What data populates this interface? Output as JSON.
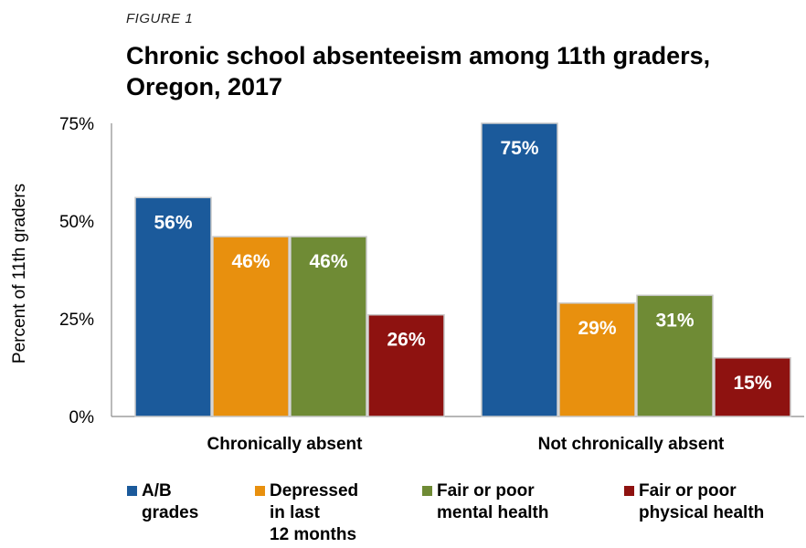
{
  "figure_label": "FIGURE 1",
  "chart_data": {
    "type": "bar",
    "title": "Chronic school absenteeism among 11th graders, Oregon, 2017",
    "ylabel": "Percent of 11th graders",
    "xlabel": "",
    "ylim": [
      0,
      75
    ],
    "yticks": [
      "0%",
      "25%",
      "50%",
      "75%"
    ],
    "ytick_values": [
      0,
      25,
      50,
      75
    ],
    "categories": [
      "Chronically absent",
      "Not chronically absent"
    ],
    "series": [
      {
        "name": "A/B\ngrades",
        "values": [
          56,
          75
        ],
        "labels": [
          "56%",
          "75%"
        ],
        "color": "#1b5a9b"
      },
      {
        "name": "Depressed\nin last\n12 months",
        "values": [
          46,
          29
        ],
        "labels": [
          "46%",
          "29%"
        ],
        "color": "#e8900e"
      },
      {
        "name": "Fair or poor\nmental health",
        "values": [
          46,
          31
        ],
        "labels": [
          "46%",
          "31%"
        ],
        "color": "#6f8b35"
      },
      {
        "name": "Fair or poor\nphysical health",
        "values": [
          26,
          15
        ],
        "labels": [
          "26%",
          "15%"
        ],
        "color": "#8e1210"
      }
    ],
    "grid": false,
    "legend_position": "bottom"
  }
}
